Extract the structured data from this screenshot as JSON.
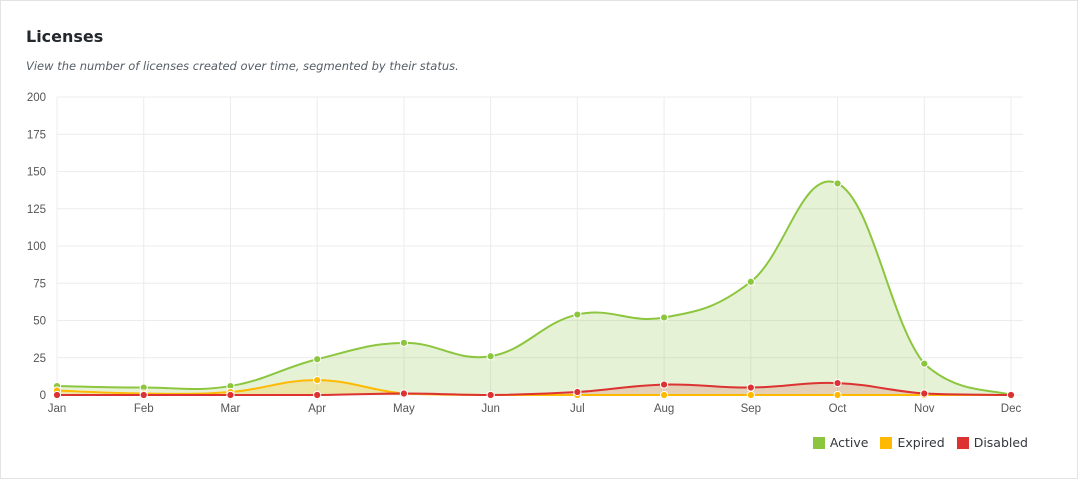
{
  "header": {
    "title": "Licenses",
    "subtitle": "View the number of licenses created over time, segmented by their status."
  },
  "chart_data": {
    "type": "area",
    "title": "Licenses",
    "xlabel": "",
    "ylabel": "",
    "categories": [
      "Jan",
      "Feb",
      "Mar",
      "Apr",
      "May",
      "Jun",
      "Jul",
      "Aug",
      "Sep",
      "Oct",
      "Nov",
      "Dec"
    ],
    "ylim": [
      0,
      200
    ],
    "yticks": [
      0,
      25,
      50,
      75,
      100,
      125,
      150,
      175,
      200
    ],
    "grid": true,
    "legend_position": "bottom-right",
    "series": [
      {
        "name": "Active",
        "color": "#8cc63f",
        "fill": "rgba(140,198,63,0.22)",
        "values": [
          6,
          5,
          6,
          24,
          35,
          26,
          54,
          52,
          76,
          142,
          21,
          0
        ]
      },
      {
        "name": "Expired",
        "color": "#ffb900",
        "fill": "rgba(255,185,0,0.22)",
        "values": [
          3,
          1,
          2,
          10,
          1,
          0,
          0,
          0,
          0,
          0,
          0,
          0
        ]
      },
      {
        "name": "Disabled",
        "color": "#dc3232",
        "fill": "rgba(220,50,50,0.18)",
        "values": [
          0,
          0,
          0,
          0,
          1,
          0,
          2,
          7,
          5,
          8,
          1,
          0
        ]
      }
    ]
  }
}
